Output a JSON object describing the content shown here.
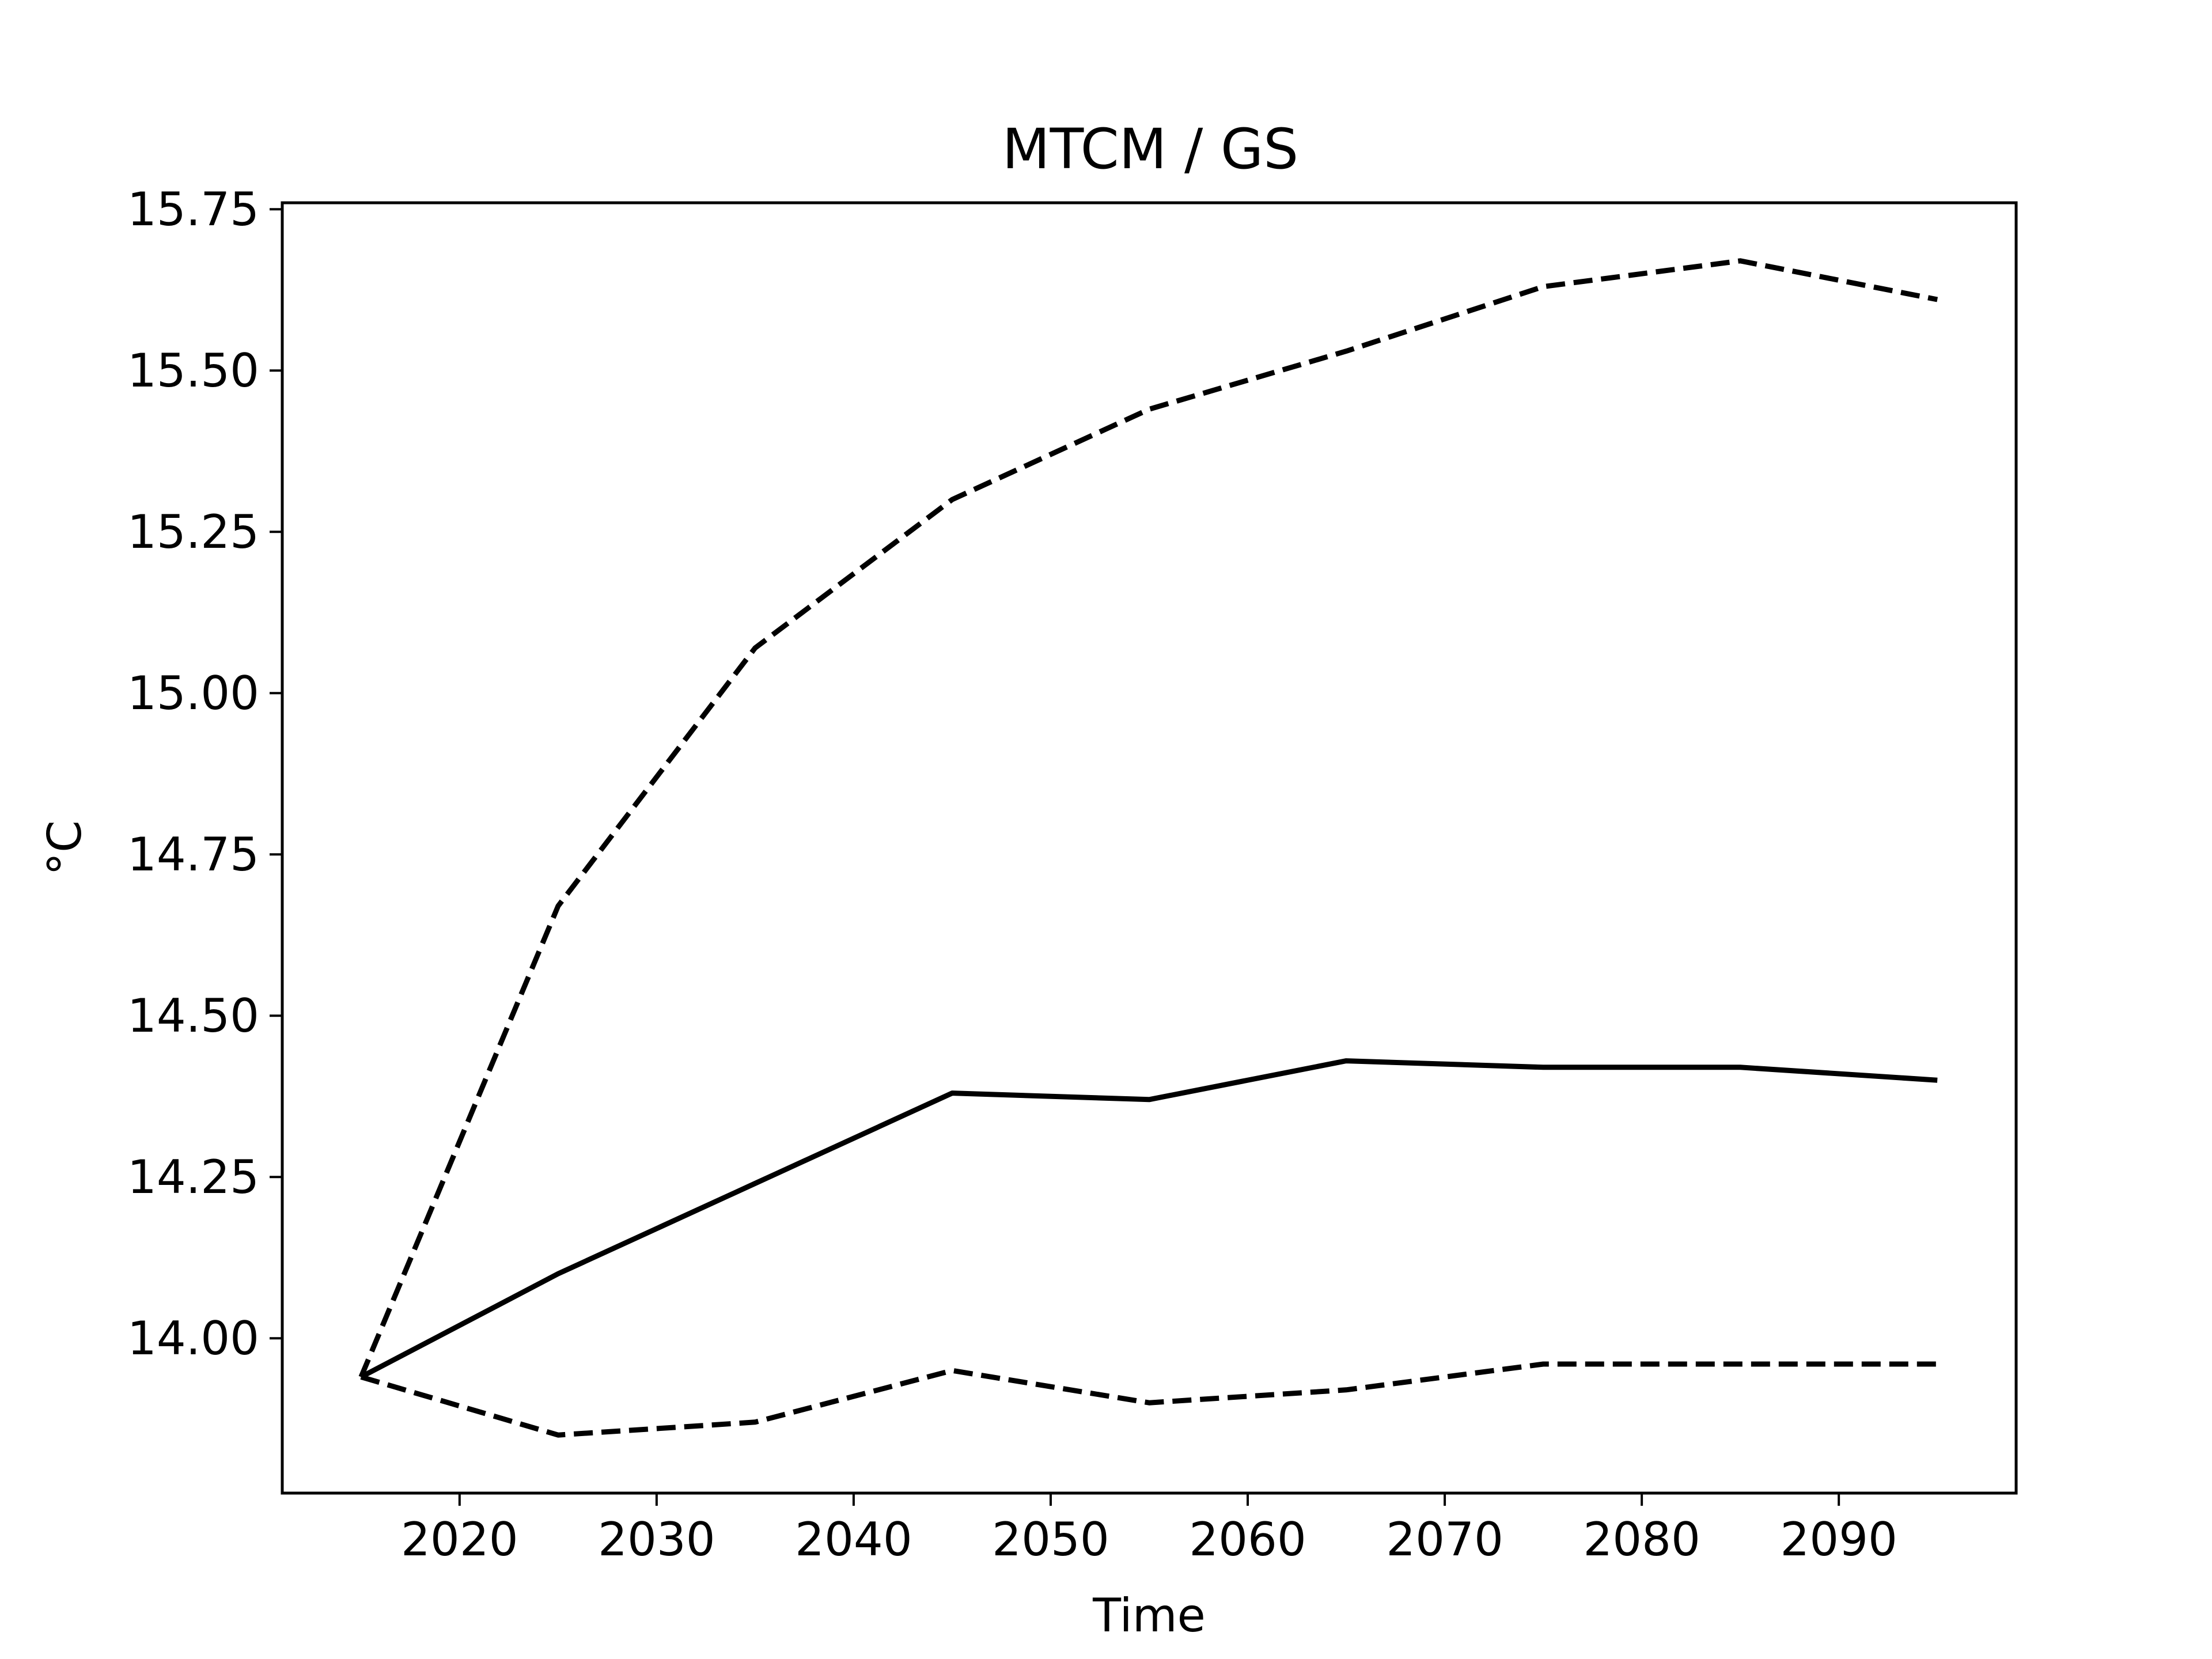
{
  "chart_data": {
    "type": "line",
    "title": "MTCM / GS",
    "xlabel": "Time",
    "ylabel": "°C",
    "xlim": [
      2011,
      2099
    ],
    "ylim": [
      13.76,
      15.76
    ],
    "xticks": [
      2020,
      2030,
      2040,
      2050,
      2060,
      2070,
      2080,
      2090
    ],
    "yticks": [
      "14.00",
      "14.25",
      "14.50",
      "14.75",
      "15.00",
      "15.25",
      "15.50",
      "15.75"
    ],
    "grid": false,
    "x": [
      2015,
      2025,
      2035,
      2045,
      2055,
      2065,
      2075,
      2085,
      2095
    ],
    "series": [
      {
        "style": "dashed",
        "color": "#000000",
        "values": [
          13.94,
          14.67,
          15.07,
          15.3,
          15.44,
          15.53,
          15.63,
          15.67,
          15.61
        ]
      },
      {
        "style": "solid",
        "color": "#000000",
        "values": [
          13.94,
          14.1,
          14.24,
          14.38,
          14.37,
          14.43,
          14.42,
          14.42,
          14.4
        ]
      },
      {
        "style": "dashed",
        "color": "#000000",
        "values": [
          13.94,
          13.85,
          13.87,
          13.95,
          13.9,
          13.92,
          13.96,
          13.96,
          13.96
        ]
      }
    ]
  }
}
